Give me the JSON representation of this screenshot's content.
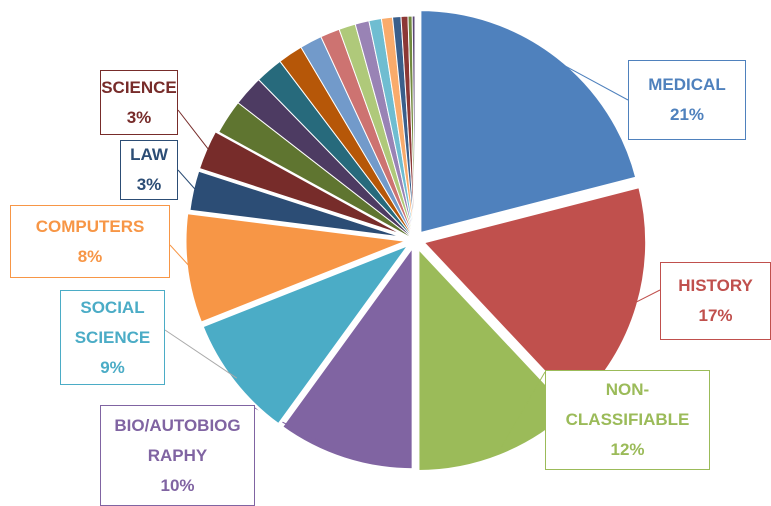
{
  "chart_data": {
    "type": "pie",
    "categories": [
      "MEDICAL",
      "HISTORY",
      "NON-CLASSIFIABLE",
      "BIO/AUTOBIOGRAPHY",
      "SOCIAL SCIENCE",
      "COMPUTERS",
      "LAW",
      "SCIENCE",
      null,
      null,
      null,
      null,
      null,
      null,
      null,
      null,
      null,
      null,
      null,
      null,
      null,
      null
    ],
    "values": [
      21,
      17,
      12,
      10,
      9,
      8,
      3,
      3,
      2.5,
      2.2,
      2,
      1.8,
      1.6,
      1.4,
      1.2,
      1.0,
      0.9,
      0.8,
      0.6,
      0.5,
      0.3,
      0.2
    ],
    "value_labels": [
      "21%",
      "17%",
      "12%",
      "10%",
      "9%",
      "8%",
      "3%",
      "3%",
      null,
      null,
      null,
      null,
      null,
      null,
      null,
      null,
      null,
      null,
      null,
      null,
      null,
      null
    ],
    "colors": [
      "#4f81bd",
      "#c0504d",
      "#9bbb59",
      "#8064a2",
      "#4bacc6",
      "#f79646",
      "#2c4d75",
      "#772c2a",
      "#5f7530",
      "#4d3b62",
      "#276a7c",
      "#b65708",
      "#729aca",
      "#cd7371",
      "#afc97a",
      "#9983b5",
      "#6fbdd1",
      "#f9ab6b",
      "#3a5f8b",
      "#8c3836",
      "#71893f",
      "#5c4776"
    ]
  }
}
